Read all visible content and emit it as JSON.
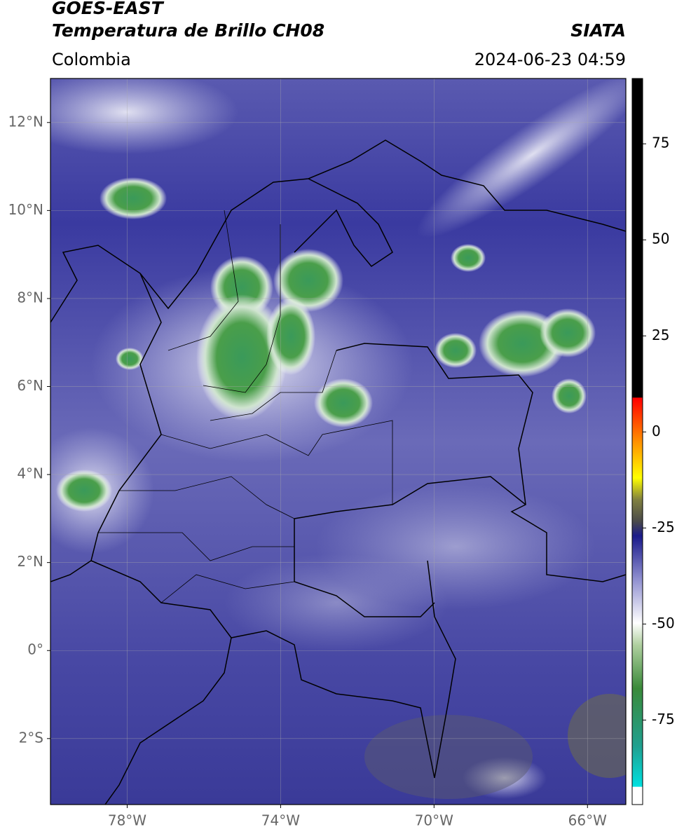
{
  "header": {
    "title_line1": "GOES-EAST",
    "title_line2": "Temperatura de Brillo CH08",
    "source": "SIATA",
    "region": "Colombia",
    "timestamp": "2024-06-23 04:59"
  },
  "map": {
    "lonlim": [
      -80,
      -65
    ],
    "latlim": [
      -3.5,
      13
    ],
    "lonticks": [
      {
        "value": -78,
        "label": "78°W"
      },
      {
        "value": -74,
        "label": "74°W"
      },
      {
        "value": -70,
        "label": "70°W"
      },
      {
        "value": -66,
        "label": "66°W"
      }
    ],
    "latticks": [
      {
        "value": 12,
        "label": "12°N"
      },
      {
        "value": 10,
        "label": "10°N"
      },
      {
        "value": 8,
        "label": "8°N"
      },
      {
        "value": 6,
        "label": "6°N"
      },
      {
        "value": 4,
        "label": "4°N"
      },
      {
        "value": 2,
        "label": "2°N"
      },
      {
        "value": 0,
        "label": "0°"
      },
      {
        "value": -2,
        "label": "2°S"
      }
    ],
    "grid": true
  },
  "colorbar": {
    "clim": [
      -97,
      92
    ],
    "ticks": [
      75,
      50,
      25,
      0,
      -25,
      -50,
      -75
    ]
  }
}
